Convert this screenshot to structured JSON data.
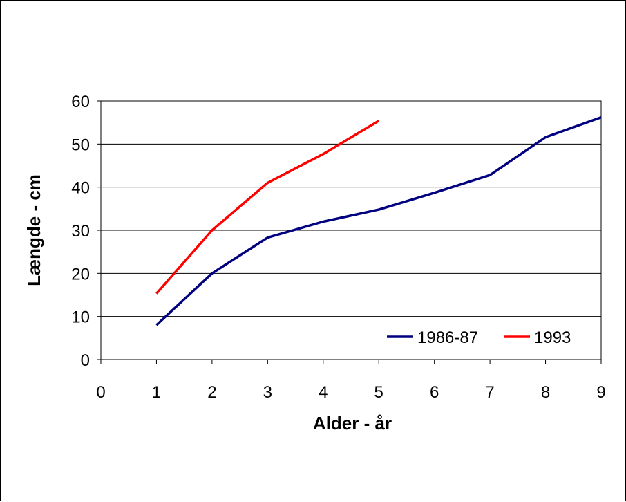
{
  "chart_data": {
    "type": "line",
    "title": "",
    "xlabel": "Alder  - år",
    "ylabel": "Længde - cm",
    "xlim": [
      0,
      9
    ],
    "ylim": [
      0,
      60
    ],
    "x_ticks": [
      "0",
      "1",
      "2",
      "3",
      "4",
      "5",
      "6",
      "7",
      "8",
      "9"
    ],
    "y_ticks": [
      "0",
      "10",
      "20",
      "30",
      "40",
      "50",
      "60"
    ],
    "grid": "horizontal",
    "legend_position": "bottom-right",
    "series": [
      {
        "name": "1986-87",
        "color": "#000080",
        "x": [
          1,
          2,
          3,
          4,
          5,
          6,
          7,
          8,
          9
        ],
        "y": [
          8,
          20,
          28.3,
          32,
          34.8,
          38.7,
          42.8,
          51.6,
          56.2
        ]
      },
      {
        "name": "1993",
        "color": "#ff0000",
        "x": [
          1,
          2,
          3,
          4,
          5
        ],
        "y": [
          15.3,
          30,
          41,
          47.7,
          55.4
        ]
      }
    ]
  }
}
